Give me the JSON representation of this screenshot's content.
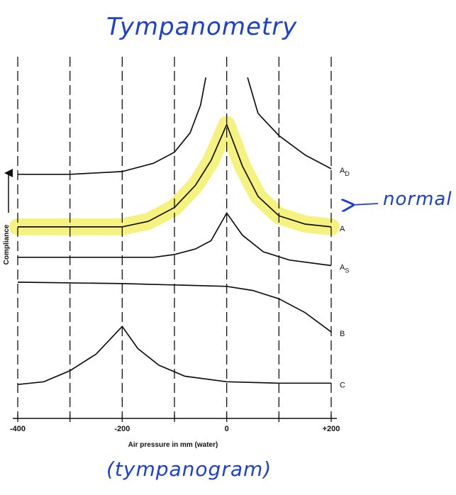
{
  "title": "Tympanometry",
  "subtitle": "(tympanogram)",
  "annotation": "normal",
  "chart_data": {
    "type": "line",
    "xlabel": "Air pressure in mm  (water)",
    "ylabel": "Compliance",
    "xlim": [
      -400,
      200
    ],
    "x_ticks": [
      -400,
      -300,
      -200,
      -100,
      0,
      100,
      200
    ],
    "x_tick_labels": [
      "-400",
      "",
      "-200",
      "",
      "0",
      "",
      "+200"
    ],
    "gridlines": "dashed vertical",
    "highlight_color": "#f3f06a",
    "highlight_series": "A",
    "series": [
      {
        "name": "AD",
        "label_main": "A",
        "label_sub": "D",
        "type": "open-peak",
        "left": [
          [
            -400,
            0.78
          ],
          [
            -300,
            0.78
          ],
          [
            -200,
            0.79
          ],
          [
            -140,
            0.82
          ],
          [
            -100,
            0.86
          ],
          [
            -70,
            0.93
          ],
          [
            -50,
            1.03
          ],
          [
            -40,
            1.13
          ]
        ],
        "right": [
          [
            40,
            1.13
          ],
          [
            60,
            1.0
          ],
          [
            100,
            0.92
          ],
          [
            150,
            0.85
          ],
          [
            200,
            0.8
          ]
        ]
      },
      {
        "name": "A",
        "label_main": "A",
        "label_sub": "",
        "type": "peak",
        "points": [
          [
            -400,
            0.59
          ],
          [
            -200,
            0.59
          ],
          [
            -150,
            0.61
          ],
          [
            -100,
            0.66
          ],
          [
            -60,
            0.74
          ],
          [
            -30,
            0.83
          ],
          [
            0,
            0.96
          ],
          [
            30,
            0.81
          ],
          [
            60,
            0.7
          ],
          [
            100,
            0.63
          ],
          [
            150,
            0.6
          ],
          [
            200,
            0.59
          ]
        ]
      },
      {
        "name": "AS",
        "label_main": "A",
        "label_sub": "S",
        "type": "peak",
        "points": [
          [
            -400,
            0.48
          ],
          [
            -200,
            0.48
          ],
          [
            -140,
            0.48
          ],
          [
            -100,
            0.49
          ],
          [
            -60,
            0.51
          ],
          [
            -30,
            0.54
          ],
          [
            0,
            0.64
          ],
          [
            30,
            0.56
          ],
          [
            70,
            0.5
          ],
          [
            120,
            0.47
          ],
          [
            200,
            0.45
          ]
        ]
      },
      {
        "name": "B",
        "label_main": "B",
        "label_sub": "",
        "type": "flat-drop",
        "points": [
          [
            -400,
            0.39
          ],
          [
            -200,
            0.385
          ],
          [
            -100,
            0.38
          ],
          [
            0,
            0.375
          ],
          [
            50,
            0.36
          ],
          [
            100,
            0.33
          ],
          [
            150,
            0.28
          ],
          [
            200,
            0.21
          ]
        ]
      },
      {
        "name": "C",
        "label_main": "C",
        "label_sub": "",
        "type": "peak",
        "points": [
          [
            -400,
            0.02
          ],
          [
            -350,
            0.03
          ],
          [
            -300,
            0.07
          ],
          [
            -250,
            0.13
          ],
          [
            -200,
            0.23
          ],
          [
            -170,
            0.15
          ],
          [
            -130,
            0.09
          ],
          [
            -80,
            0.05
          ],
          [
            0,
            0.03
          ],
          [
            100,
            0.025
          ],
          [
            200,
            0.025
          ]
        ]
      }
    ]
  }
}
